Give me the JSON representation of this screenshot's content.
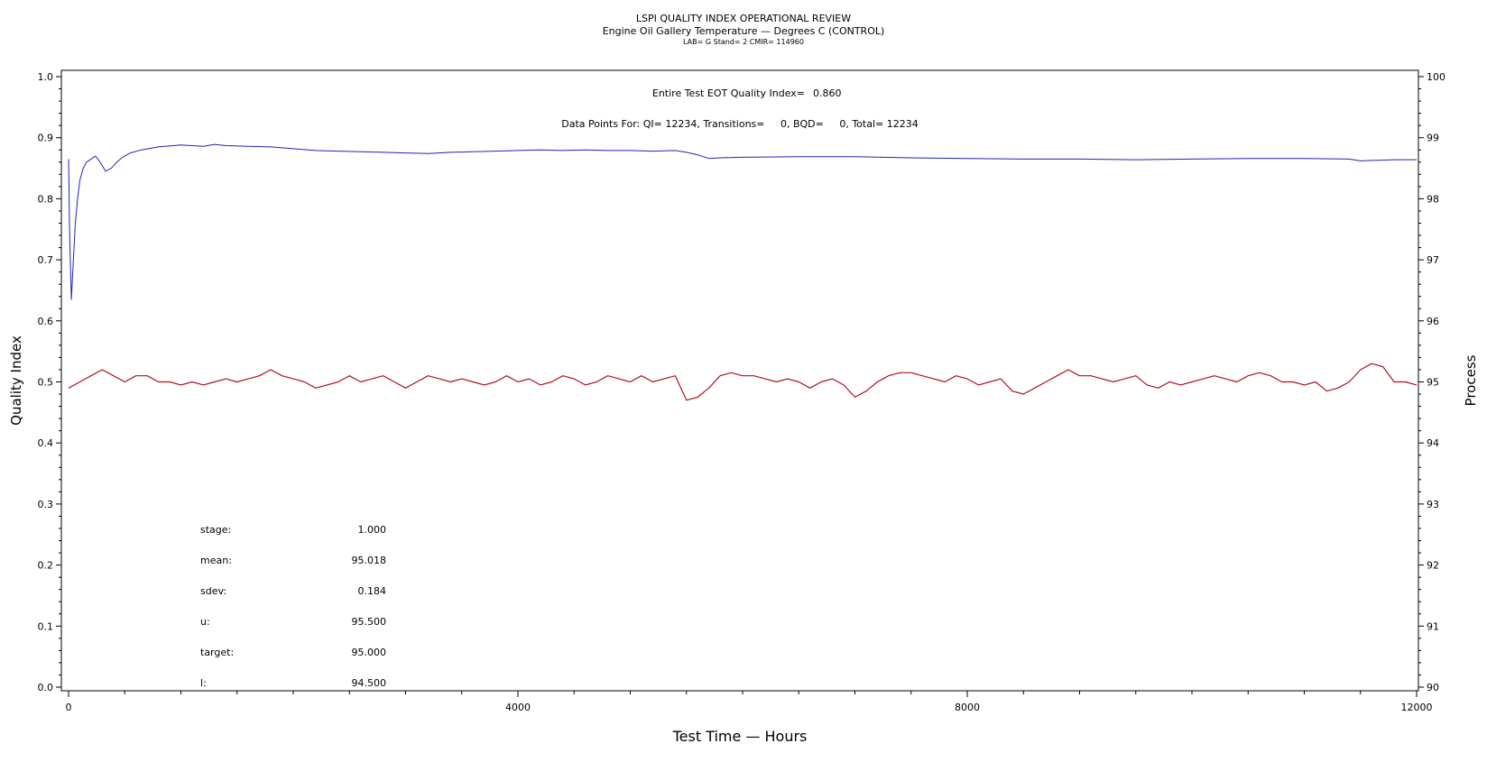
{
  "chart_data": {
    "type": "line",
    "title": "LSPI QUALITY INDEX OPERATIONAL REVIEW",
    "subtitle": "Engine Oil Gallery Temperature — Degrees C (CONTROL)",
    "subtitle2": "LAB= G Stand= 2 CMIR= 114960",
    "xlabel": "Test Time — Hours",
    "ylabel_left": "Quality Index",
    "ylabel_right": "Process",
    "xlim": [
      0,
      12000
    ],
    "ylim_left": [
      0,
      1.0
    ],
    "ylim_right": [
      90,
      100
    ],
    "x_ticks": [
      "0",
      "4000",
      "8000",
      "12000"
    ],
    "y_left_ticks": [
      "0.0",
      "0.1",
      "0.2",
      "0.3",
      "0.4",
      "0.5",
      "0.6",
      "0.7",
      "0.8",
      "0.9",
      "1.0"
    ],
    "y_right_ticks": [
      "90",
      "91",
      "92",
      "93",
      "94",
      "95",
      "96",
      "97",
      "98",
      "99",
      "100"
    ],
    "grid": false,
    "annotations": {
      "qi_label": "Entire Test EOT Quality Index=",
      "qi_value": "0.860",
      "points_line": "Data Points For: QI= 12234, Transitions=     0, BQD=     0, Total= 12234"
    },
    "stats": [
      {
        "label": "stage:",
        "value": "1.000"
      },
      {
        "label": "mean:",
        "value": "95.018"
      },
      {
        "label": "sdev:",
        "value": "0.184"
      },
      {
        "label": "u:",
        "value": "95.500"
      },
      {
        "label": "target:",
        "value": "95.000"
      },
      {
        "label": "l:",
        "value": "94.500"
      }
    ],
    "series": [
      {
        "axis": "left",
        "color": "#2222bb",
        "x": [
          0,
          10,
          25,
          40,
          60,
          80,
          100,
          130,
          160,
          200,
          240,
          280,
          330,
          380,
          430,
          480,
          550,
          650,
          800,
          1000,
          1200,
          1300,
          1400,
          1600,
          1800,
          2000,
          2200,
          2400,
          2600,
          2800,
          3000,
          3200,
          3400,
          3600,
          3800,
          4000,
          4200,
          4400,
          4600,
          4800,
          5000,
          5200,
          5400,
          5500,
          5600,
          5700,
          5800,
          6000,
          6500,
          7000,
          7500,
          8000,
          8500,
          9000,
          9500,
          10000,
          10500,
          11000,
          11400,
          11500,
          11800,
          12000
        ],
        "y": [
          0.865,
          0.74,
          0.635,
          0.69,
          0.76,
          0.8,
          0.83,
          0.85,
          0.86,
          0.865,
          0.87,
          0.86,
          0.845,
          0.85,
          0.86,
          0.868,
          0.875,
          0.88,
          0.885,
          0.888,
          0.886,
          0.889,
          0.887,
          0.886,
          0.885,
          0.882,
          0.879,
          0.878,
          0.877,
          0.876,
          0.875,
          0.874,
          0.876,
          0.877,
          0.878,
          0.879,
          0.88,
          0.879,
          0.88,
          0.879,
          0.879,
          0.878,
          0.879,
          0.876,
          0.872,
          0.866,
          0.867,
          0.868,
          0.869,
          0.869,
          0.867,
          0.866,
          0.865,
          0.865,
          0.864,
          0.865,
          0.866,
          0.866,
          0.865,
          0.862,
          0.864,
          0.864
        ]
      },
      {
        "axis": "right",
        "color": "#b01020",
        "x": [
          0,
          100,
          200,
          300,
          400,
          500,
          600,
          700,
          800,
          900,
          1000,
          1100,
          1200,
          1300,
          1400,
          1500,
          1600,
          1700,
          1800,
          1900,
          2000,
          2100,
          2200,
          2300,
          2400,
          2500,
          2600,
          2700,
          2800,
          2900,
          3000,
          3100,
          3200,
          3300,
          3400,
          3500,
          3600,
          3700,
          3800,
          3900,
          4000,
          4100,
          4200,
          4300,
          4400,
          4500,
          4600,
          4700,
          4800,
          4900,
          5000,
          5100,
          5200,
          5300,
          5400,
          5500,
          5600,
          5700,
          5800,
          5900,
          6000,
          6100,
          6200,
          6300,
          6400,
          6500,
          6600,
          6700,
          6800,
          6900,
          7000,
          7100,
          7200,
          7300,
          7400,
          7500,
          7600,
          7700,
          7800,
          7900,
          8000,
          8100,
          8200,
          8300,
          8400,
          8500,
          8600,
          8700,
          8800,
          8900,
          9000,
          9100,
          9200,
          9300,
          9400,
          9500,
          9600,
          9700,
          9800,
          9900,
          10000,
          10100,
          10200,
          10300,
          10400,
          10500,
          10600,
          10700,
          10800,
          10900,
          11000,
          11100,
          11200,
          11300,
          11400,
          11500,
          11600,
          11700,
          11800,
          11900,
          12000
        ],
        "y": [
          94.9,
          95.0,
          95.1,
          95.2,
          95.1,
          95.0,
          95.1,
          95.1,
          95.0,
          95.0,
          94.95,
          95.0,
          94.95,
          95.0,
          95.05,
          95.0,
          95.05,
          95.1,
          95.2,
          95.1,
          95.05,
          95.0,
          94.9,
          94.95,
          95.0,
          95.1,
          95.0,
          95.05,
          95.1,
          95.0,
          94.9,
          95.0,
          95.1,
          95.05,
          95.0,
          95.05,
          95.0,
          94.95,
          95.0,
          95.1,
          95.0,
          95.05,
          94.95,
          95.0,
          95.1,
          95.05,
          94.95,
          95.0,
          95.1,
          95.05,
          95.0,
          95.1,
          95.0,
          95.05,
          95.1,
          94.7,
          94.75,
          94.9,
          95.1,
          95.15,
          95.1,
          95.1,
          95.05,
          95.0,
          95.05,
          95.0,
          94.9,
          95.0,
          95.05,
          94.95,
          94.75,
          94.85,
          95.0,
          95.1,
          95.15,
          95.15,
          95.1,
          95.05,
          95.0,
          95.1,
          95.05,
          94.95,
          95.0,
          95.05,
          94.85,
          94.8,
          94.9,
          95.0,
          95.1,
          95.2,
          95.1,
          95.1,
          95.05,
          95.0,
          95.05,
          95.1,
          94.95,
          94.9,
          95.0,
          94.95,
          95.0,
          95.05,
          95.1,
          95.05,
          95.0,
          95.1,
          95.15,
          95.1,
          95.0,
          95.0,
          94.95,
          95.0,
          94.85,
          94.9,
          95.0,
          95.2,
          95.3,
          95.25,
          95.0,
          95.0,
          94.95
        ]
      }
    ]
  }
}
